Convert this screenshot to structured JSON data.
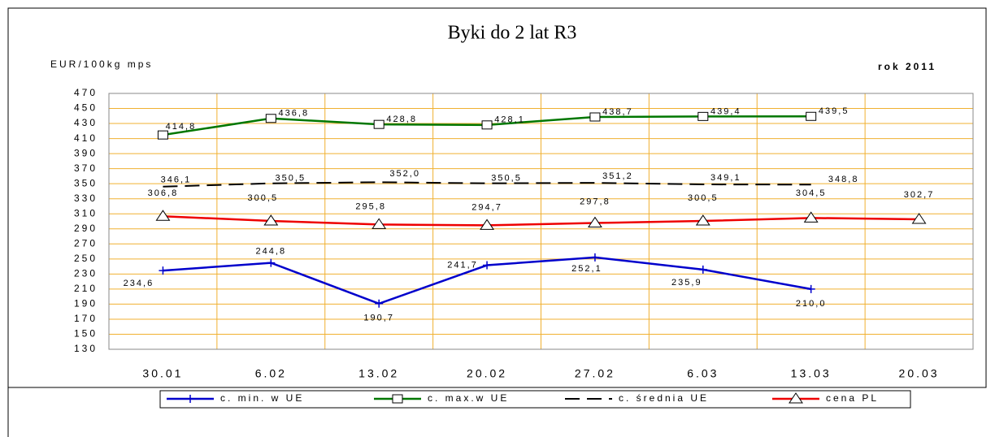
{
  "chart_data": {
    "type": "line",
    "title": "Byki do 2 lat R3",
    "y_label": "EUR/100kg mps",
    "annotation": "rok 2011",
    "categories": [
      "30.01",
      "6.02",
      "13.02",
      "20.02",
      "27.02",
      "6.03",
      "13.03",
      "20.03"
    ],
    "ylim": [
      130,
      470
    ],
    "yticks": [
      130,
      150,
      170,
      190,
      210,
      230,
      250,
      270,
      290,
      310,
      330,
      350,
      370,
      390,
      410,
      430,
      450,
      470
    ],
    "grid": true,
    "series": [
      {
        "name": "c. min. w UE",
        "color": "#0000cc",
        "marker": "plus",
        "values": [
          234.6,
          244.8,
          190.7,
          241.7,
          252.1,
          235.9,
          210.0,
          null
        ],
        "value_labels": [
          "234,6",
          "244,8",
          "190,7",
          "241,7",
          "252,1",
          "235,9",
          "210,0",
          null
        ]
      },
      {
        "name": "c. max.w UE",
        "color": "#007700",
        "marker": "square",
        "values": [
          414.8,
          436.8,
          428.8,
          428.1,
          438.7,
          439.4,
          439.5,
          null
        ],
        "value_labels": [
          "414,8",
          "436,8",
          "428,8",
          "428,1",
          "438,7",
          "439,4",
          "439,5",
          null
        ]
      },
      {
        "name": "c. średnia UE",
        "color": "#000000",
        "marker": "none",
        "dashed": true,
        "values": [
          346.1,
          350.5,
          352.0,
          350.5,
          351.2,
          349.1,
          348.8,
          null
        ],
        "value_labels": [
          "346,1",
          "350,5",
          "352,0",
          "350,5",
          "351,2",
          "349,1",
          "348,8",
          null
        ]
      },
      {
        "name": "cena PL",
        "color": "#ee0000",
        "marker": "triangle",
        "values": [
          306.8,
          300.5,
          295.8,
          294.7,
          297.8,
          300.5,
          304.5,
          302.7
        ],
        "value_labels": [
          "306,8",
          "300,5",
          "295,8",
          "294,7",
          "297,8",
          "300,5",
          "304,5",
          "302,7"
        ]
      }
    ],
    "legend": "bottom"
  }
}
